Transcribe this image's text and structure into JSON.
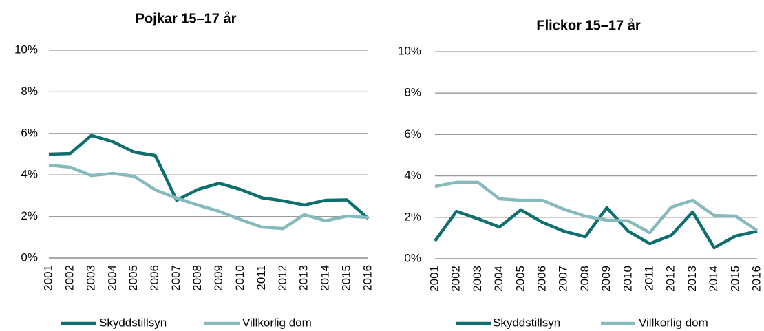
{
  "chart_data": [
    {
      "type": "line",
      "title": "Pojkar 15–17 år",
      "categories": [
        "2001",
        "2002",
        "2003",
        "2004",
        "2005",
        "2006",
        "2007",
        "2008",
        "2009",
        "2010",
        "2011",
        "2012",
        "2013",
        "2014",
        "2015",
        "2016"
      ],
      "series": [
        {
          "name": "Skyddstillsyn",
          "color": "#0f6e6e",
          "values": [
            5.0,
            5.03,
            5.9,
            5.6,
            5.1,
            4.93,
            2.78,
            3.3,
            3.6,
            3.3,
            2.9,
            2.75,
            2.55,
            2.78,
            2.8,
            1.9
          ]
        },
        {
          "name": "Villkorlig dom",
          "color": "#86babd",
          "values": [
            4.47,
            4.37,
            3.97,
            4.07,
            3.94,
            3.28,
            2.88,
            2.55,
            2.25,
            1.85,
            1.49,
            1.42,
            2.09,
            1.79,
            2.02,
            1.95
          ]
        }
      ],
      "ylim": [
        0,
        10
      ],
      "yticks": [
        {
          "value": 0,
          "label": "0%"
        },
        {
          "value": 2,
          "label": "2%"
        },
        {
          "value": 4,
          "label": "4%"
        },
        {
          "value": 6,
          "label": "6%"
        },
        {
          "value": 8,
          "label": "8%"
        },
        {
          "value": 10,
          "label": "10%"
        }
      ],
      "grid": true,
      "legend": "bottom"
    },
    {
      "type": "line",
      "title": "Flickor 15–17 år",
      "categories": [
        "2001",
        "2002",
        "2003",
        "2004",
        "2005",
        "2006",
        "2007",
        "2008",
        "2009",
        "2010",
        "2011",
        "2012",
        "2013",
        "2014",
        "2015",
        "2016"
      ],
      "series": [
        {
          "name": "Skyddstillsyn",
          "color": "#0f6e6e",
          "values": [
            0.86,
            2.29,
            1.93,
            1.53,
            2.36,
            1.76,
            1.33,
            1.06,
            2.46,
            1.33,
            0.73,
            1.13,
            2.26,
            0.53,
            1.1,
            1.33
          ]
        },
        {
          "name": "Villkorlig dom",
          "color": "#86babd",
          "values": [
            3.49,
            3.69,
            3.69,
            2.89,
            2.82,
            2.82,
            2.39,
            2.06,
            1.86,
            1.83,
            1.26,
            2.49,
            2.82,
            2.09,
            2.06,
            1.36
          ]
        }
      ],
      "ylim": [
        0,
        10
      ],
      "yticks": [
        {
          "value": 0,
          "label": "0%"
        },
        {
          "value": 2,
          "label": "2%"
        },
        {
          "value": 4,
          "label": "4%"
        },
        {
          "value": 6,
          "label": "6%"
        },
        {
          "value": 8,
          "label": "8%"
        },
        {
          "value": 10,
          "label": "10%"
        }
      ],
      "grid": true,
      "legend": "bottom"
    }
  ]
}
